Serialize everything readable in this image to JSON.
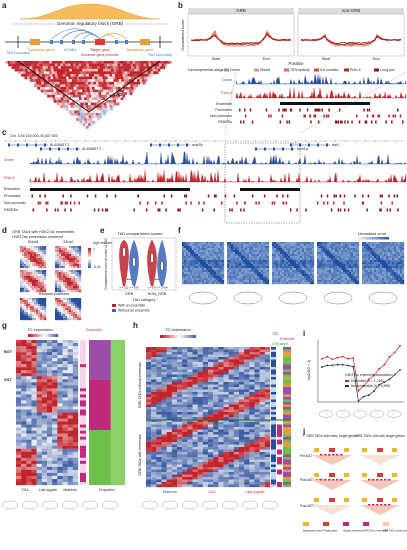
{
  "panel_letters": [
    "a",
    "b",
    "c",
    "d",
    "e",
    "f",
    "g",
    "h",
    "i",
    "j"
  ],
  "a": {
    "title": "Genomic regulatory block (GRB)",
    "boundary_left": "TAD boundary",
    "boundary_right": "TAD boundary",
    "bystander_left": "Bystander gene",
    "hcnes": "HCNEs",
    "target": "Target gene",
    "promoter": "Enhancer-gene promoter",
    "bystander_right": "Bystander gene",
    "tad": "TAD"
  },
  "b": {
    "left": "GRB",
    "right": "non-GRB",
    "ylabel": "Normalized score",
    "start": "Start",
    "end": "End",
    "xlabel": "Position",
    "legend_title": "Developmental stage",
    "stages": [
      "Dome",
      "Shield",
      "75%-epiboly",
      "5-8 somites",
      "Prim-5",
      "Long-pec"
    ],
    "tracks": [
      "Dome",
      "Prim-5",
      "Ensemble",
      "Promoters",
      "Non promoter",
      "PADREs"
    ]
  },
  "c": {
    "coords": "Chr. 3:45,160,000-45,837,500",
    "genes": [
      "AL928657.3",
      "AL928657.2",
      "ackr3b",
      "foxn1a",
      "ikzf1"
    ],
    "tracks": [
      "Dome",
      "Prim-5",
      "Ensemble",
      "Promoters",
      "Non promoter",
      "PADREs"
    ]
  },
  "d": {
    "title": "GRB TADs with H3K27ac ensembles",
    "subtitle": "H3K27ac ensembles centered",
    "cols": [
      "Shield",
      "24hpf"
    ],
    "scale_label": "log2 enrichment",
    "scale_top": "1",
    "scale_bottom": "-0.01",
    "random": "Random positions"
  },
  "e": {
    "title": "TAD compartment scores",
    "ylabel": "Compartment score at center of TAD",
    "xlabel": "TAD category",
    "groups": [
      "GRB",
      "NON_GRB"
    ],
    "n": [
      "n = 212",
      "n = 639",
      "n = 877",
      "n = 3,434"
    ],
    "legend": [
      "With an ensemble",
      "Without an ensemble"
    ],
    "sig": "***"
  },
  "f": {
    "scale": "Normalized score"
  },
  "g": {
    "title": "TC expression",
    "ensemble": "Ensemble",
    "rows": [
      "BGT",
      "GST"
    ],
    "cols": [
      "ZGA",
      "Late zygotic",
      "Maternal"
    ],
    "xlabel": "Proportion"
  },
  "h": {
    "title": "TC expression",
    "side": [
      "TSS",
      "Ensemble",
      "GRB target"
    ],
    "groups": [
      "GRB TADs without ensemble",
      "GRB TADs with ensemble"
    ],
    "cols": [
      "Maternal",
      "ZGA",
      "Late zygotic"
    ]
  },
  "i": {
    "ylabel": "log2(fl/D + 1)",
    "title": "H3K27ac ensemble association",
    "legend": [
      "Ensemble (n = 1,216)",
      "Non ensemble (n = 5,999)"
    ]
  },
  "j": {
    "left": "GRB TADs with early target genes",
    "right": "GRB TADs with late target genes",
    "stages": [
      "Pre-MZT",
      "Post-MZT, early",
      "Post-MZT, late"
    ],
    "legend": [
      "Bystander gene",
      "Target gene",
      "Single enhancer",
      "H3K27ac ensemble",
      "GRB TADs (colored intensity represents TAD strength)"
    ]
  }
}
